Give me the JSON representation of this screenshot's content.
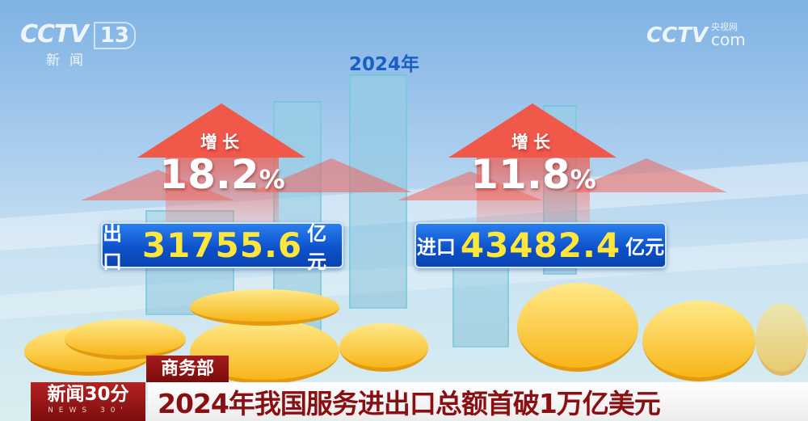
{
  "channel_logo": {
    "brand": "CCTV",
    "channel": "13",
    "name": "新闻"
  },
  "watermark": {
    "brand": "CCTV",
    "cn": "央视网",
    "suffix": "com"
  },
  "year_label": "2024年",
  "export": {
    "growth_label": "增长",
    "growth_value": "18.2",
    "percent": "%",
    "label": "出口",
    "amount": "31755.6",
    "unit": "亿元"
  },
  "import": {
    "growth_label": "增长",
    "growth_value": "11.8",
    "percent": "%",
    "label": "进口",
    "amount": "43482.4",
    "unit": "亿元"
  },
  "source_tag": "商务部",
  "program_logo": {
    "title": "新闻30分",
    "subtitle": "NEWS 30'"
  },
  "headline": "2024年我国服务进出口总额首破1万亿美元",
  "colors": {
    "arrow": "#f0584a",
    "box": "#0c4fc8",
    "amount": "#ffe63a",
    "headline": "#8a0f12",
    "tag": "#8c1414"
  }
}
